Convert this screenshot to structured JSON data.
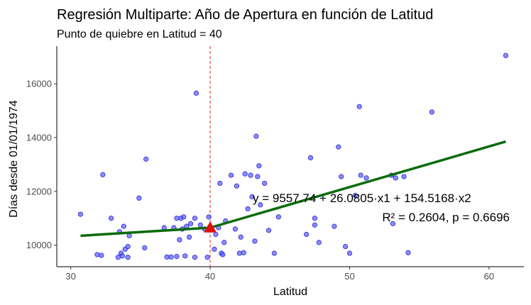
{
  "chart_data": {
    "type": "scatter",
    "title": "Regresión Multiparte: Año de Apertura en función de Latitud",
    "subtitle": "Punto de quiebre en Latitud = 40",
    "xlabel": "Latitud",
    "ylabel": "Días desde 01/01/1974",
    "xlim": [
      29,
      62.5
    ],
    "ylim": [
      9200,
      17400
    ],
    "xticks": [
      30,
      40,
      50,
      60
    ],
    "yticks": [
      10000,
      12000,
      14000,
      16000
    ],
    "grid": false,
    "breakpoint": {
      "x": 40,
      "y": 10650
    },
    "points": [
      [
        30.7,
        11150
      ],
      [
        31.9,
        9650
      ],
      [
        32.2,
        9620
      ],
      [
        32.3,
        12620
      ],
      [
        32.9,
        11000
      ],
      [
        33.4,
        9550
      ],
      [
        33.5,
        10500
      ],
      [
        33.6,
        9700
      ],
      [
        33.7,
        9600
      ],
      [
        33.8,
        10700
      ],
      [
        33.9,
        9850
      ],
      [
        34.1,
        9950
      ],
      [
        34.1,
        9550
      ],
      [
        34.2,
        10350
      ],
      [
        34.9,
        11750
      ],
      [
        35.3,
        9900
      ],
      [
        35.4,
        13200
      ],
      [
        36.7,
        10650
      ],
      [
        36.9,
        9560
      ],
      [
        37.2,
        9560
      ],
      [
        37.4,
        10650
      ],
      [
        37.6,
        11000
      ],
      [
        37.6,
        9580
      ],
      [
        37.8,
        10200
      ],
      [
        37.9,
        11000
      ],
      [
        38.0,
        10600
      ],
      [
        38.1,
        11050
      ],
      [
        38.2,
        9600
      ],
      [
        38.3,
        10700
      ],
      [
        38.5,
        10300
      ],
      [
        38.6,
        10800
      ],
      [
        38.9,
        11000
      ],
      [
        38.9,
        9550
      ],
      [
        39.0,
        15650
      ],
      [
        39.3,
        10750
      ],
      [
        39.6,
        10600
      ],
      [
        39.9,
        11050
      ],
      [
        39.8,
        9550
      ],
      [
        40.3,
        9850
      ],
      [
        40.4,
        10400
      ],
      [
        40.6,
        10650
      ],
      [
        40.7,
        12300
      ],
      [
        40.8,
        9700
      ],
      [
        40.9,
        9650
      ],
      [
        41.0,
        10100
      ],
      [
        41.1,
        10900
      ],
      [
        41.5,
        12600
      ],
      [
        41.8,
        10600
      ],
      [
        41.9,
        12200
      ],
      [
        42.1,
        9700
      ],
      [
        42.2,
        10300
      ],
      [
        42.4,
        9720
      ],
      [
        42.5,
        12650
      ],
      [
        42.7,
        11350
      ],
      [
        42.9,
        12600
      ],
      [
        43.0,
        11800
      ],
      [
        43.2,
        10150
      ],
      [
        43.3,
        14050
      ],
      [
        43.4,
        12550
      ],
      [
        43.5,
        12950
      ],
      [
        43.6,
        11500
      ],
      [
        43.9,
        12300
      ],
      [
        44.2,
        10550
      ],
      [
        44.6,
        9700
      ],
      [
        44.9,
        11050
      ],
      [
        46.9,
        10400
      ],
      [
        47.2,
        13250
      ],
      [
        47.5,
        10750
      ],
      [
        47.5,
        11000
      ],
      [
        47.8,
        10100
      ],
      [
        48.9,
        10700
      ],
      [
        49.2,
        13650
      ],
      [
        49.4,
        12550
      ],
      [
        49.7,
        9950
      ],
      [
        50.0,
        9700
      ],
      [
        50.4,
        11850
      ],
      [
        50.7,
        15150
      ],
      [
        50.8,
        12600
      ],
      [
        51.2,
        12500
      ],
      [
        53.0,
        12600
      ],
      [
        53.1,
        10800
      ],
      [
        53.3,
        12500
      ],
      [
        53.9,
        12550
      ],
      [
        54.2,
        9720
      ],
      [
        55.9,
        14950
      ],
      [
        61.2,
        17050
      ]
    ],
    "fit_line": [
      [
        30.7,
        10350
      ],
      [
        40,
        10650
      ],
      [
        61.2,
        13850
      ]
    ],
    "equation": "y = 9557.74 + 26.0805·x1 + 154.5168·x2",
    "stats": "R² = 0.2604, p = 0.6696",
    "colors": {
      "points_fill": "#5a5aff",
      "points_stroke": "#2a2ad0",
      "fit_line": "#0a6b0a",
      "breakpoint_marker": "#e31010",
      "breakpoint_line": "#d62a2a"
    }
  }
}
